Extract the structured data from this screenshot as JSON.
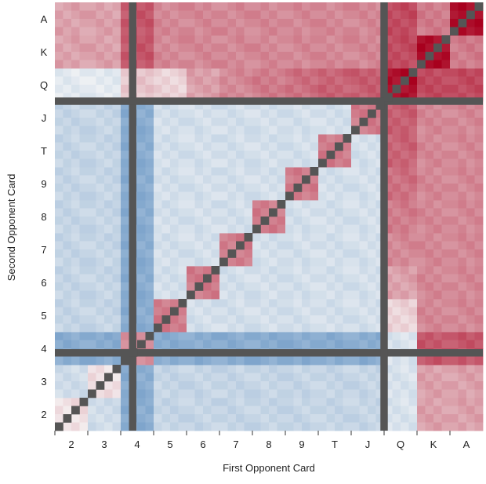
{
  "chart_data": {
    "type": "heatmap",
    "title": "",
    "xlabel": "First Opponent Card",
    "ylabel": "Second Opponent Card",
    "x_categories": [
      "2",
      "3",
      "4",
      "5",
      "6",
      "7",
      "8",
      "9",
      "T",
      "J",
      "Q",
      "K",
      "A"
    ],
    "y_categories": [
      "2",
      "3",
      "4",
      "5",
      "6",
      "7",
      "8",
      "9",
      "T",
      "J",
      "Q",
      "K",
      "A"
    ],
    "blocked_rank": "4",
    "blocked_color": "#555555",
    "color_scale": {
      "type": "diverging",
      "min_color": "#2f6fb0",
      "mid_color": "#f7f7f7",
      "max_color": "#a8001e"
    },
    "value_range": [
      -1,
      1
    ],
    "cell_values": [
      [
        0.1,
        -0.2,
        -0.55,
        -0.25,
        -0.25,
        -0.25,
        -0.25,
        -0.25,
        -0.25,
        -0.25,
        -0.15,
        0.35,
        0.35
      ],
      [
        -0.2,
        0.1,
        -0.55,
        -0.25,
        -0.25,
        -0.25,
        -0.25,
        -0.25,
        -0.25,
        -0.25,
        -0.15,
        0.35,
        0.35
      ],
      [
        -0.55,
        -0.55,
        0.45,
        -0.55,
        -0.55,
        -0.55,
        -0.55,
        -0.55,
        -0.55,
        -0.55,
        -0.15,
        0.65,
        0.65
      ],
      [
        -0.25,
        -0.25,
        -0.55,
        0.5,
        -0.18,
        -0.18,
        -0.18,
        -0.18,
        -0.18,
        -0.18,
        0.15,
        0.45,
        0.45
      ],
      [
        -0.25,
        -0.25,
        -0.55,
        -0.18,
        0.5,
        -0.18,
        -0.18,
        -0.18,
        -0.18,
        -0.18,
        0.35,
        0.45,
        0.45
      ],
      [
        -0.25,
        -0.25,
        -0.55,
        -0.18,
        -0.18,
        0.5,
        -0.18,
        -0.18,
        -0.18,
        -0.18,
        0.45,
        0.45,
        0.45
      ],
      [
        -0.25,
        -0.25,
        -0.55,
        -0.18,
        -0.18,
        -0.18,
        0.5,
        -0.18,
        -0.18,
        -0.18,
        0.5,
        0.45,
        0.45
      ],
      [
        -0.25,
        -0.25,
        -0.55,
        -0.18,
        -0.18,
        -0.18,
        -0.18,
        0.5,
        -0.18,
        -0.18,
        0.55,
        0.45,
        0.45
      ],
      [
        -0.25,
        -0.25,
        -0.55,
        -0.18,
        -0.18,
        -0.18,
        -0.18,
        -0.18,
        0.5,
        -0.18,
        0.6,
        0.45,
        0.45
      ],
      [
        -0.25,
        -0.25,
        -0.55,
        -0.18,
        -0.18,
        -0.18,
        -0.18,
        -0.18,
        -0.18,
        0.5,
        0.62,
        0.45,
        0.45
      ],
      [
        -0.1,
        -0.1,
        0.2,
        0.15,
        0.35,
        0.45,
        0.5,
        0.55,
        0.6,
        0.62,
        0.95,
        0.7,
        0.7
      ],
      [
        0.35,
        0.35,
        0.65,
        0.45,
        0.45,
        0.45,
        0.45,
        0.45,
        0.45,
        0.45,
        0.7,
        0.95,
        0.5
      ],
      [
        0.35,
        0.35,
        0.65,
        0.45,
        0.45,
        0.45,
        0.45,
        0.45,
        0.45,
        0.45,
        0.7,
        0.5,
        0.95
      ]
    ],
    "grid": false,
    "legend": "none"
  }
}
